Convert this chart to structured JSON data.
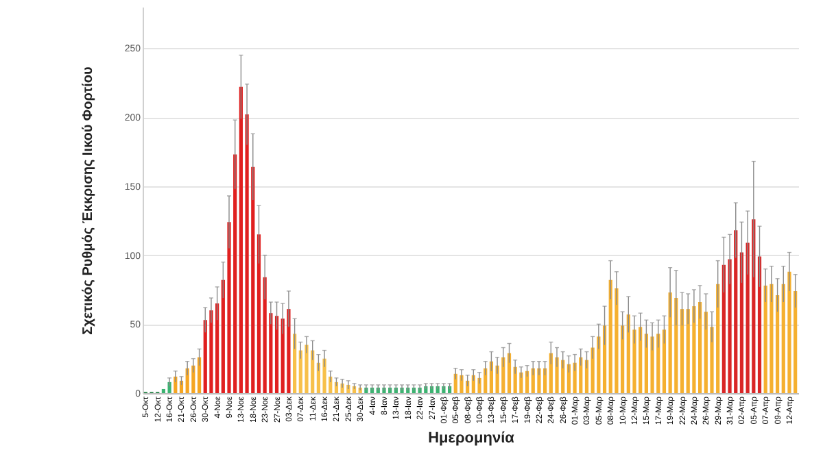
{
  "chart_data": {
    "type": "bar",
    "ylabel": "Σχετικός Ρυθμός Έκκρισης Ιικού Φορτίου",
    "xlabel": "Ημερομηνία",
    "categories": [
      "5-Οκτ",
      null,
      "12-Οκτ",
      null,
      "16-Οκτ",
      null,
      "21-Οκτ",
      null,
      "26-Οκτ",
      null,
      "30-Οκτ",
      null,
      "4-Νοε",
      null,
      "9-Νοε",
      null,
      "13-Νοε",
      null,
      "18-Νοε",
      null,
      "23-Νοε",
      null,
      "27-Νοε",
      null,
      "03-Δεκ",
      null,
      "07-Δεκ",
      null,
      "11-Δεκ",
      null,
      "16-Δεκ",
      null,
      "21-Δεκ",
      null,
      "25-Δεκ",
      null,
      "30-Δεκ",
      null,
      "4-Ιαν",
      null,
      "8-Ιαν",
      null,
      "13-Ιαν",
      null,
      "18-Ιαν",
      null,
      "22-Ιαν",
      null,
      "27-Ιαν",
      null,
      "01-Φεβ",
      null,
      "05-Φεβ",
      null,
      "08-Φεβ",
      null,
      "10-Φεβ",
      null,
      "13-Φεβ",
      null,
      "15-Φεβ",
      null,
      "17-Φεβ",
      null,
      "19-Φεβ",
      null,
      "22-Φεβ",
      null,
      "24-Φεβ",
      null,
      "26-Φεβ",
      null,
      "01-Μαρ",
      null,
      "03-Μαρ",
      null,
      "05-Μαρ",
      null,
      "08-Μαρ",
      null,
      "10-Μαρ",
      null,
      "12-Μαρ",
      null,
      "15-Μαρ",
      null,
      "17-Μαρ",
      null,
      "19-Μαρ",
      null,
      "22-Μαρ",
      null,
      "24-Μαρ",
      null,
      "26-Μαρ",
      null,
      "29-Μαρ",
      null,
      "31-Μαρ",
      null,
      "02-Απρ",
      null,
      "05-Απρ",
      null,
      "07-Απρ",
      null,
      "09-Απρ",
      null,
      "12-Απρ",
      null
    ],
    "values": [
      1,
      1,
      1,
      3,
      8,
      12,
      9,
      18,
      20,
      26,
      53,
      60,
      65,
      82,
      124,
      173,
      222,
      202,
      164,
      115,
      84,
      58,
      56,
      54,
      61,
      43,
      31,
      35,
      31,
      22,
      25,
      12,
      8,
      7,
      6,
      5,
      4,
      4,
      4,
      4,
      4,
      4,
      4,
      4,
      4,
      4,
      4,
      5,
      5,
      5,
      5,
      5,
      14,
      13,
      9,
      13,
      11,
      18,
      23,
      20,
      26,
      29,
      19,
      15,
      16,
      18,
      18,
      18,
      29,
      26,
      24,
      21,
      22,
      26,
      24,
      33,
      41,
      49,
      82,
      76,
      49,
      57,
      46,
      48,
      43,
      41,
      43,
      46,
      73,
      69,
      61,
      61,
      63,
      66,
      59,
      48,
      79,
      93,
      97,
      118,
      102,
      109,
      126,
      99,
      78,
      79,
      71,
      79,
      88,
      74
    ],
    "errors": [
      null,
      null,
      null,
      null,
      3,
      4,
      3,
      5,
      5,
      6,
      9,
      9,
      12,
      13,
      19,
      25,
      23,
      22,
      24,
      21,
      16,
      8,
      10,
      11,
      13,
      11,
      6,
      6,
      7,
      6,
      6,
      4,
      3,
      3,
      3,
      2,
      2,
      2,
      2,
      2,
      2,
      2,
      2,
      2,
      2,
      2,
      2,
      2,
      2,
      2,
      2,
      2,
      4,
      4,
      4,
      4,
      4,
      5,
      7,
      6,
      7,
      7,
      5,
      4,
      4,
      5,
      5,
      5,
      8,
      7,
      6,
      6,
      6,
      6,
      6,
      8,
      9,
      14,
      14,
      12,
      10,
      13,
      10,
      10,
      10,
      10,
      10,
      10,
      18,
      20,
      12,
      11,
      12,
      12,
      13,
      11,
      17,
      20,
      18,
      20,
      22,
      23,
      42,
      22,
      12,
      13,
      12,
      13,
      14,
      12
    ],
    "colors": [
      "#3c8f5a",
      "#3c8f5a",
      "#3c8f5a",
      "#3cb371",
      "#3cb371",
      "#f5a623",
      "#f5a623",
      "#f5a623",
      "#f5a623",
      "#f5a623",
      "#e02020",
      "#e02020",
      "#e02020",
      "#e02020",
      "#e02020",
      "#e02020",
      "#e02020",
      "#e02020",
      "#e02020",
      "#e02020",
      "#e02020",
      "#e02020",
      "#e02020",
      "#e02020",
      "#e02020",
      "#f7c04a",
      "#f7c04a",
      "#f7c04a",
      "#f7c04a",
      "#f7c04a",
      "#f7c04a",
      "#f7c04a",
      "#f7c04a",
      "#f7c04a",
      "#f7c04a",
      "#f7c04a",
      "#f7c04a",
      "#3cb371",
      "#3cb371",
      "#3cb371",
      "#3cb371",
      "#3cb371",
      "#3cb371",
      "#3cb371",
      "#3cb371",
      "#3cb371",
      "#3cb371",
      "#3cb371",
      "#3cb371",
      "#3cb371",
      "#3cb371",
      "#3cb371",
      "#f5b030",
      "#f5b030",
      "#f5b030",
      "#f5b030",
      "#f5b030",
      "#f5b030",
      "#f5b030",
      "#f5b030",
      "#f5b030",
      "#f5b030",
      "#f5b030",
      "#f5b030",
      "#f5b030",
      "#f5b030",
      "#f5b030",
      "#f5b030",
      "#f5b030",
      "#f5b030",
      "#f5b030",
      "#f5b030",
      "#f5b030",
      "#f5b030",
      "#f5b030",
      "#f5b030",
      "#f5b030",
      "#f5b030",
      "#f5b030",
      "#f5b030",
      "#f5b030",
      "#f5b030",
      "#f5b030",
      "#f5b030",
      "#f5b030",
      "#f5b030",
      "#f5b030",
      "#f5b030",
      "#f5b030",
      "#f5b030",
      "#f5b030",
      "#f5b030",
      "#f5b030",
      "#f5b030",
      "#f5b030",
      "#f5b030",
      "#f5b030",
      "#d92626",
      "#d92626",
      "#d92626",
      "#d92626",
      "#d92626",
      "#d92626",
      "#d92626",
      "#f5b030",
      "#f5b030",
      "#f5b030",
      "#f5b030",
      "#f5b030",
      "#f5b030"
    ],
    "ylim": [
      0,
      280
    ],
    "yticks": [
      0,
      50,
      100,
      150,
      200,
      250
    ],
    "grid": "y"
  }
}
